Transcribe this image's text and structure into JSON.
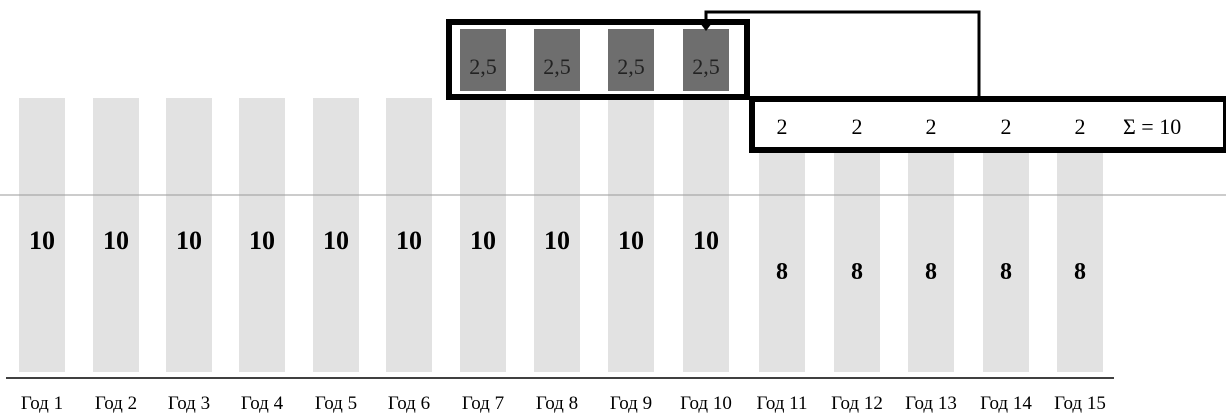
{
  "years": [
    "Год 1",
    "Год 2",
    "Год 3",
    "Год 4",
    "Год 5",
    "Год 6",
    "Год 7",
    "Год 8",
    "Год 9",
    "Год 10",
    "Год 11",
    "Год 12",
    "Год 13",
    "Год 14",
    "Год 15"
  ],
  "base_values": [
    10,
    10,
    10,
    10,
    10,
    10,
    10,
    10,
    10,
    10,
    8,
    8,
    8,
    8,
    8
  ],
  "shifted_values": [
    "2,5",
    "2,5",
    "2,5",
    "2,5"
  ],
  "shifted_years": [
    7,
    8,
    9,
    10
  ],
  "deferred_values": [
    "2",
    "2",
    "2",
    "2",
    "2"
  ],
  "deferred_years": [
    11,
    12,
    13,
    14,
    15
  ],
  "sum_label": "Σ = 10",
  "colors": {
    "light_bar": "#e2e2e2",
    "dark_bar": "#6e6e6e",
    "frame": "#000000",
    "baseline": "#999999"
  }
}
